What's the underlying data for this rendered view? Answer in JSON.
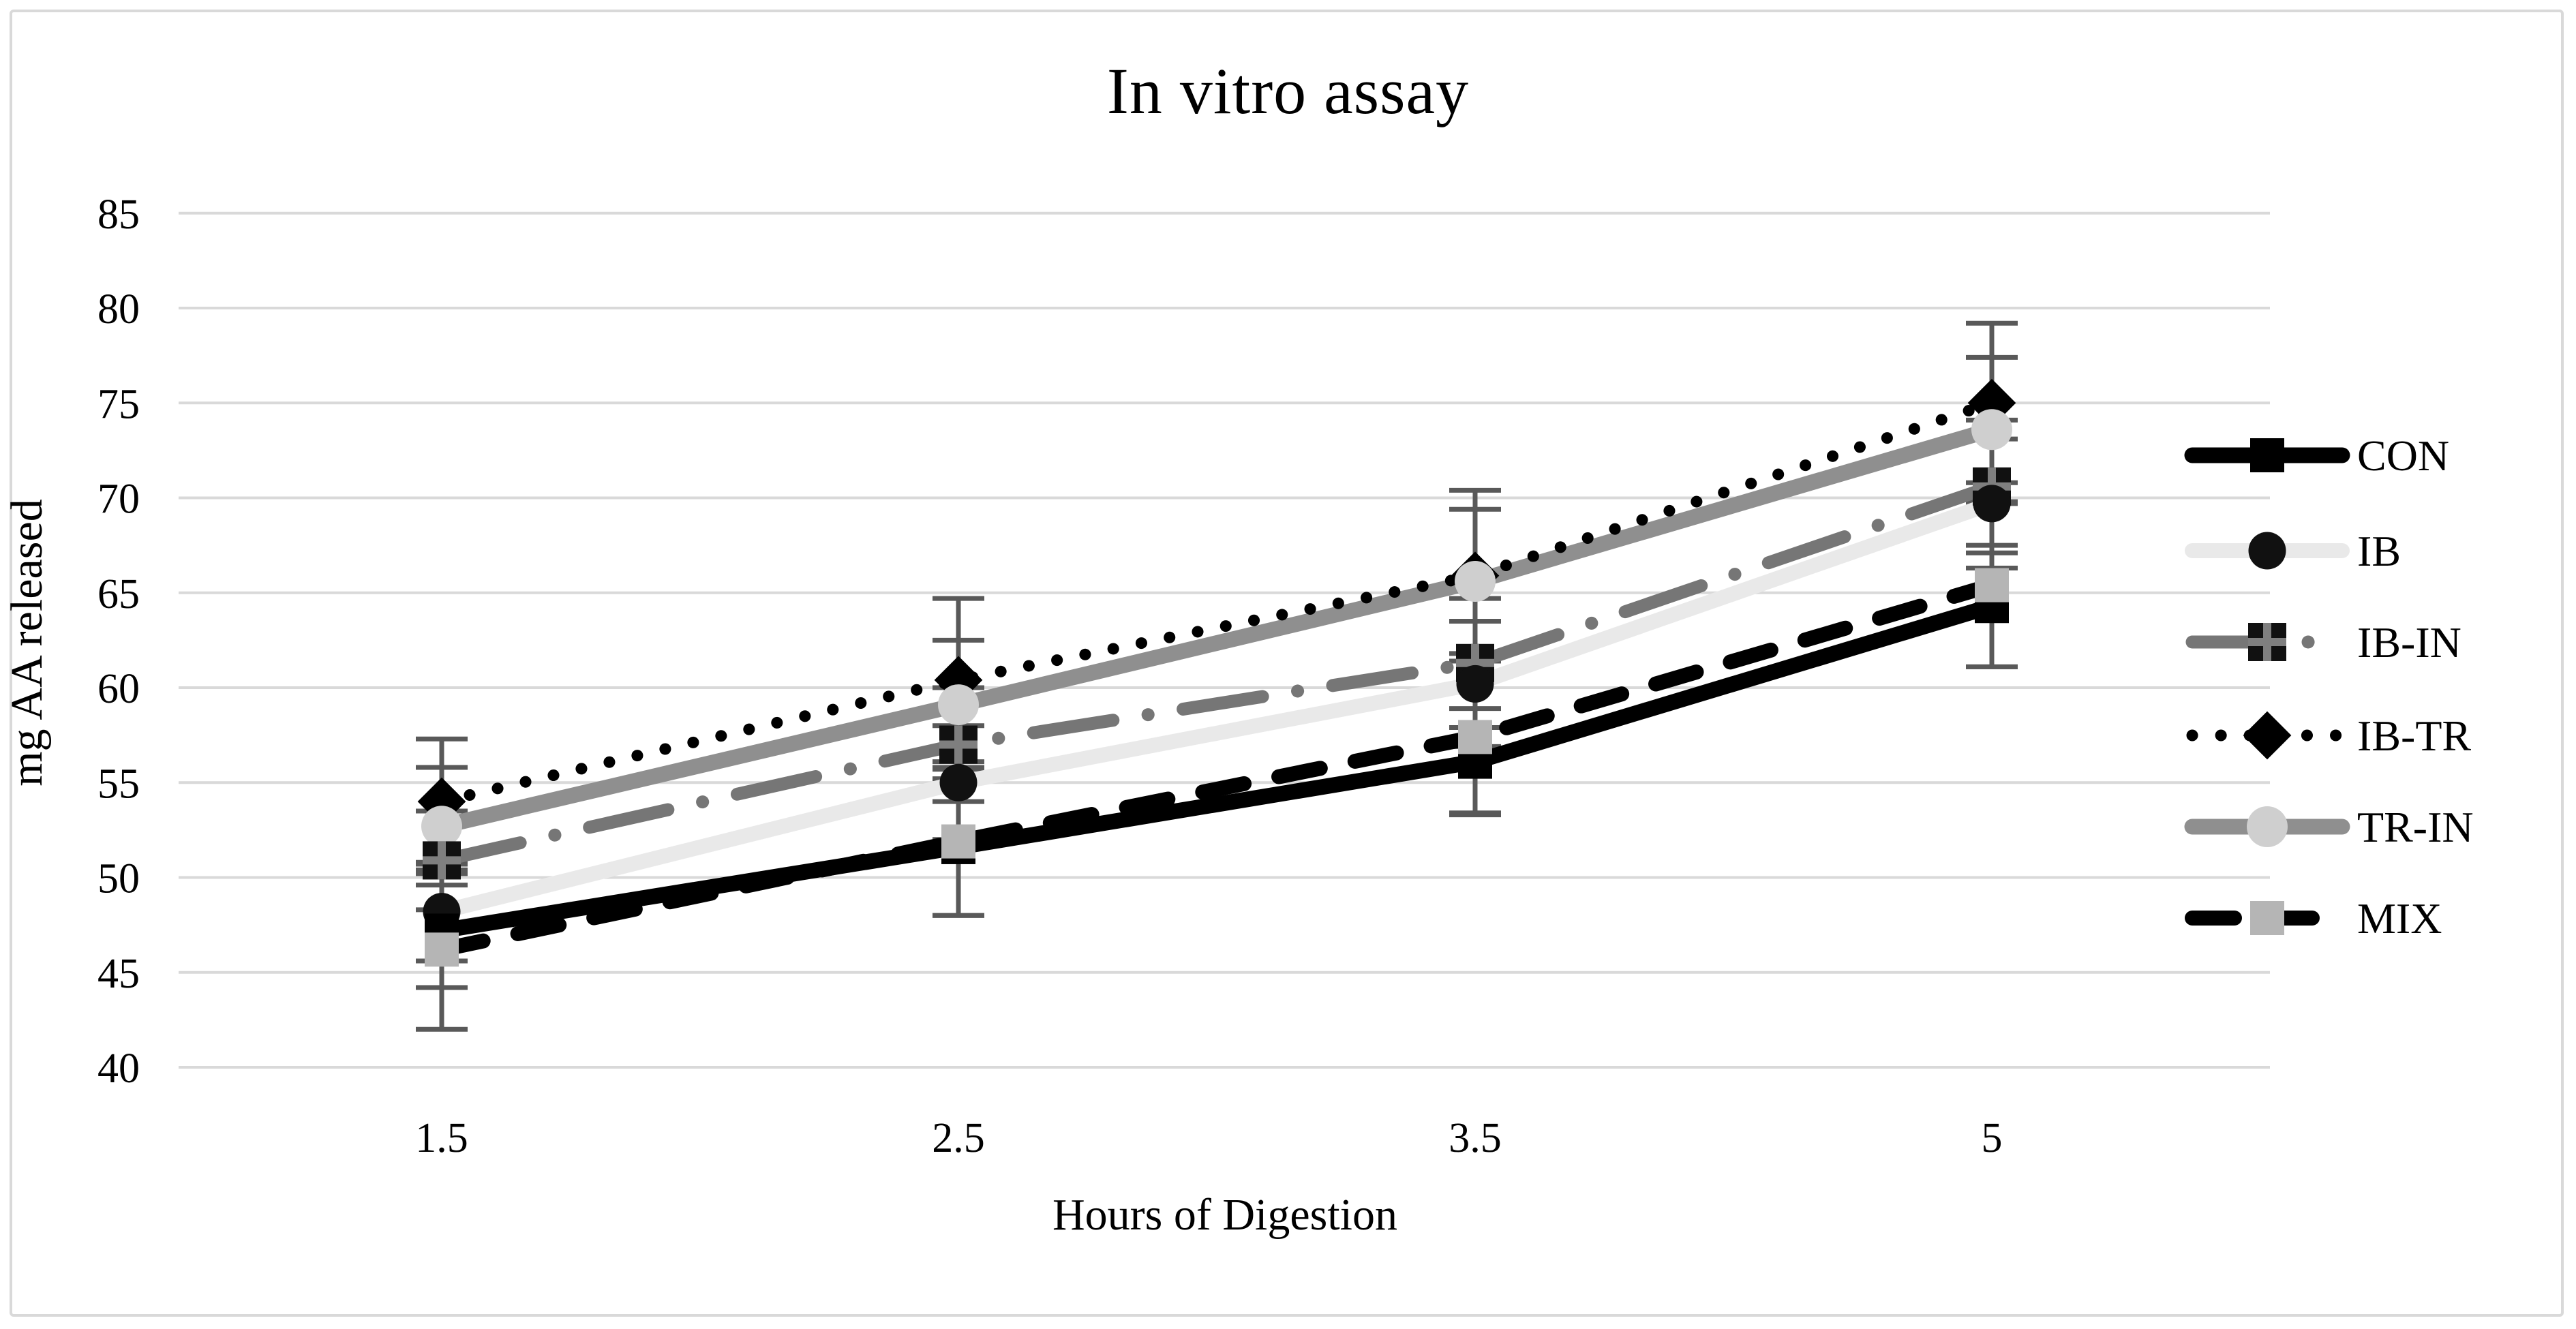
{
  "title": "In vitro assay",
  "axes": {
    "x_title": "Hours of Digestion",
    "y_title": "mg AA released",
    "y_ticks": [
      85,
      80,
      75,
      70,
      65,
      60,
      55,
      50,
      45,
      40
    ],
    "x_ticks": [
      "1.5",
      "2.5",
      "3.5",
      "5"
    ]
  },
  "colors": {
    "gridline": "#d9d9d9",
    "error_bar": "#595959",
    "frame_border": "#d9d9d9",
    "text": "#000000"
  },
  "chart_data": {
    "type": "line",
    "title": "In vitro assay",
    "xlabel": "Hours of Digestion",
    "ylabel": "mg AA released",
    "categories": [
      1.5,
      2.5,
      3.5,
      5
    ],
    "ylim": [
      40,
      85
    ],
    "y_step": 5,
    "grid": true,
    "legend_position": "right",
    "error_bars": true,
    "series": [
      {
        "name": "CON",
        "line": "solid",
        "line_color": "#000000",
        "line_width": 23,
        "marker": "filled-square",
        "marker_color": "#000000",
        "values": [
          47.2,
          51.6,
          56.1,
          64.3
        ],
        "errors": [
          3.0,
          3.6,
          2.8,
          3.2
        ]
      },
      {
        "name": "IB",
        "line": "solid",
        "line_color": "#e9e9e9",
        "line_width": 22,
        "marker": "filled-circle",
        "marker_color": "#111111",
        "values": [
          48.2,
          55.0,
          60.2,
          69.7
        ],
        "errors": [
          2.6,
          3.0,
          3.3,
          3.4
        ]
      },
      {
        "name": "IB-IN",
        "line": "dash-dot",
        "line_color": "#767676",
        "line_width": 19,
        "marker": "square-plus",
        "marker_color": "#111111",
        "values": [
          50.9,
          57.0,
          61.3,
          70.6
        ],
        "errors": [
          2.6,
          3.0,
          3.4,
          3.5
        ]
      },
      {
        "name": "IB-TR",
        "line": "dotted",
        "line_color": "#000000",
        "line_width": 17,
        "marker": "diamond",
        "marker_color": "#000000",
        "values": [
          54.0,
          60.4,
          65.9,
          75.0
        ],
        "errors": [
          3.3,
          4.3,
          4.5,
          4.2
        ]
      },
      {
        "name": "TR-IN",
        "line": "solid",
        "line_color": "#8f8f8f",
        "line_width": 23,
        "marker": "circle",
        "marker_color": "#cfcfcf",
        "values": [
          52.7,
          59.1,
          65.6,
          73.6
        ],
        "errors": [
          3.1,
          3.4,
          3.8,
          3.8
        ]
      },
      {
        "name": "MIX",
        "line": "dashed",
        "line_color": "#000000",
        "line_width": 22,
        "marker": "square",
        "marker_color": "#b5b5b5",
        "values": [
          46.2,
          51.9,
          57.4,
          65.4
        ],
        "errors": [
          4.2,
          3.9,
          4.0,
          4.3
        ]
      }
    ]
  }
}
